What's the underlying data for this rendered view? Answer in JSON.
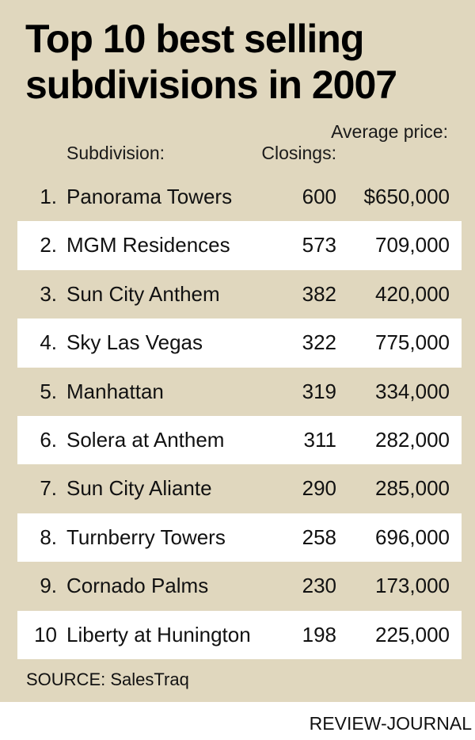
{
  "chart_data": {
    "type": "table",
    "title": "Top 10 best selling subdivisions in 2007",
    "columns": [
      "Subdivision:",
      "Closings:",
      "Average price:"
    ],
    "rows": [
      {
        "rank": "1.",
        "name": "Panorama Towers",
        "closings": "600",
        "price": "$650,000"
      },
      {
        "rank": "2.",
        "name": "MGM Residences",
        "closings": "573",
        "price": "709,000"
      },
      {
        "rank": "3.",
        "name": "Sun City Anthem",
        "closings": "382",
        "price": "420,000"
      },
      {
        "rank": "4.",
        "name": "Sky Las Vegas",
        "closings": "322",
        "price": "775,000"
      },
      {
        "rank": "5.",
        "name": "Manhattan",
        "closings": "319",
        "price": "334,000"
      },
      {
        "rank": "6.",
        "name": "Solera at Anthem",
        "closings": "311",
        "price": "282,000"
      },
      {
        "rank": "7.",
        "name": "Sun City Aliante",
        "closings": "290",
        "price": "285,000"
      },
      {
        "rank": "8.",
        "name": "Turnberry Towers",
        "closings": "258",
        "price": "696,000"
      },
      {
        "rank": "9.",
        "name": "Cornado Palms",
        "closings": "230",
        "price": "173,000"
      },
      {
        "rank": "10",
        "name": "Liberty at Hunington",
        "closings": "198",
        "price": "225,000"
      }
    ],
    "source": "SOURCE: SalesTraq",
    "credit": "REVIEW-JOURNAL"
  },
  "colors": {
    "panel": "#e0d7be",
    "stripe": "#ffffff"
  }
}
